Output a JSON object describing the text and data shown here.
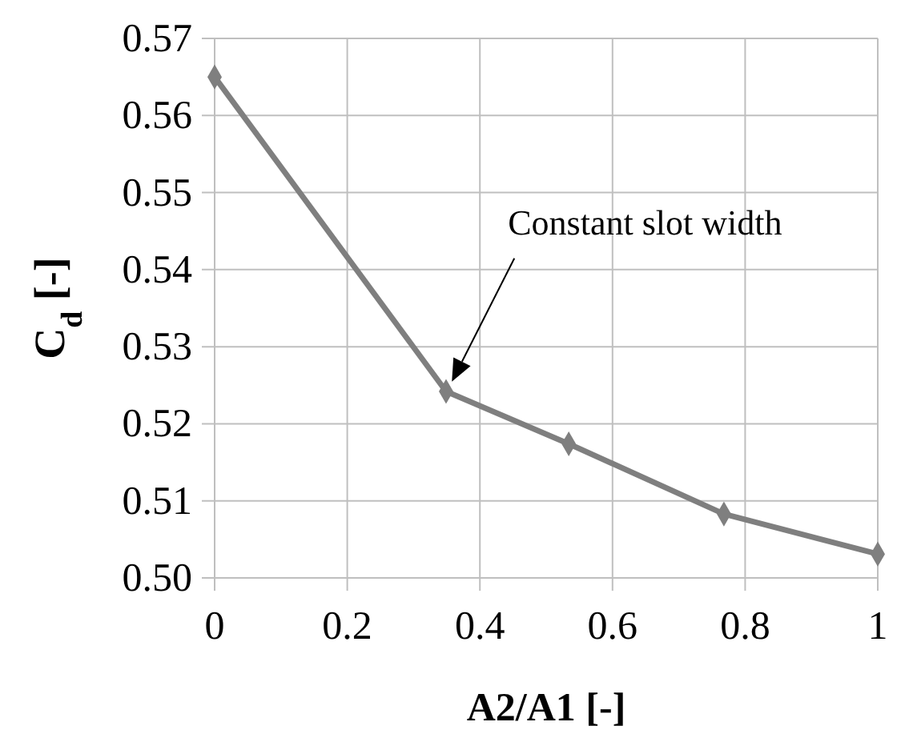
{
  "chart_data": {
    "type": "line",
    "xlabel": "A2/A1 [-]",
    "ylabel": "C$_{d}$ [-]",
    "x": [
      0,
      0.349,
      0.534,
      0.768,
      1
    ],
    "series": [
      {
        "color": "#7f7f7f",
        "values": [
          0.565,
          0.5242,
          0.5174,
          0.5083,
          0.5031
        ]
      }
    ],
    "xlim": [
      0,
      1
    ],
    "xticks": [
      0,
      0.2,
      0.4,
      0.6,
      0.8,
      1
    ],
    "ylim": [
      0.5,
      0.57
    ],
    "yticks": [
      {
        "value": 0.5,
        "label": "0.50"
      },
      {
        "value": 0.51,
        "label": "0.51"
      },
      {
        "value": 0.52,
        "label": "0.52"
      },
      {
        "value": 0.53,
        "label": "0.53"
      },
      {
        "value": 0.54,
        "label": "0.54"
      },
      {
        "value": 0.55,
        "label": "0.55"
      },
      {
        "value": 0.56,
        "label": "0.56"
      },
      {
        "value": 0.57,
        "label": "0.57"
      }
    ],
    "grid": true,
    "marker": "diamond",
    "line_style": "solid",
    "annotations": [
      "Constant slot width"
    ]
  }
}
